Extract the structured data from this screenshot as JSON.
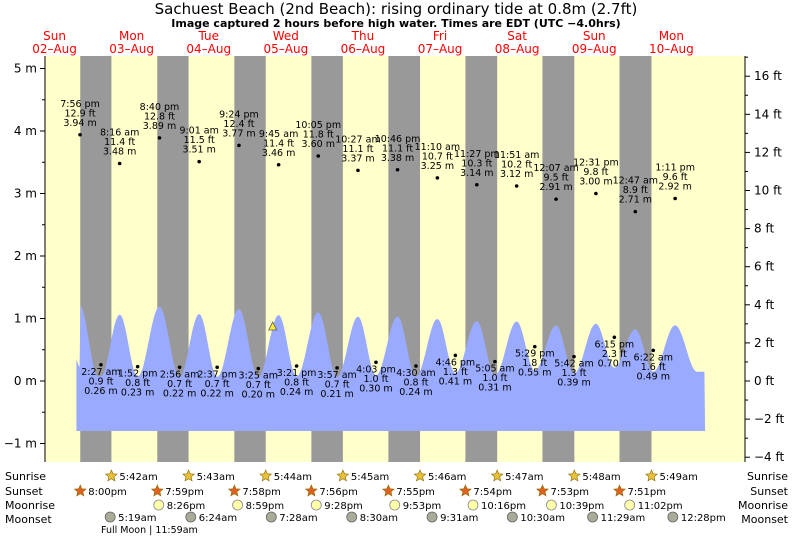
{
  "title": "Sachuest Beach (2nd Beach): rising  ordinary tide at 0.8m (2.7ft)",
  "subtitle": "Image captured 2 hours before high water. Times are EDT (UTC −4.0hrs)",
  "colors": {
    "day": "#ffffcc",
    "night": "#999999",
    "water": "#99aaff",
    "date": "#ff0000",
    "sunrise_star": "#e8c03a",
    "sunset_star": "#e06020",
    "moonrise": "#ffffaa",
    "moonset": "#aaaa99"
  },
  "days": [
    {
      "name": "Sun",
      "date": "02–Aug"
    },
    {
      "name": "Mon",
      "date": "03–Aug"
    },
    {
      "name": "Tue",
      "date": "04–Aug"
    },
    {
      "name": "Wed",
      "date": "05–Aug"
    },
    {
      "name": "Thu",
      "date": "06–Aug"
    },
    {
      "name": "Fri",
      "date": "07–Aug"
    },
    {
      "name": "Sat",
      "date": "08–Aug"
    },
    {
      "name": "Sun",
      "date": "09–Aug"
    },
    {
      "name": "Mon",
      "date": "10–Aug"
    }
  ],
  "row_labels": {
    "sunrise": "Sunrise",
    "sunset": "Sunset",
    "moonrise": "Moonrise",
    "moonset": "Moonset"
  },
  "sunrise": [
    "5:42am",
    "5:43am",
    "5:44am",
    "5:45am",
    "5:46am",
    "5:47am",
    "5:48am",
    "5:49am"
  ],
  "sunset": [
    "8:00pm",
    "7:59pm",
    "7:58pm",
    "7:56pm",
    "7:55pm",
    "7:54pm",
    "7:53pm",
    "7:51pm"
  ],
  "moonrise": [
    "8:26pm",
    "8:59pm",
    "9:28pm",
    "9:53pm",
    "10:16pm",
    "10:39pm",
    "11:02pm"
  ],
  "moonset": [
    "5:19am",
    "6:24am",
    "7:28am",
    "8:30am",
    "9:31am",
    "10:30am",
    "11:29am",
    "12:28pm"
  ],
  "moon_phase": "Full Moon | 11:59am",
  "chart_data": {
    "type": "area",
    "title": "Sachuest Beach (2nd Beach): rising  ordinary tide at 0.8m (2.7ft)",
    "subtitle": "Image captured 2 hours before high water. Times are EDT (UTC −4.0hrs)",
    "y_left_unit": "m",
    "y_left_ticks": [
      "−1 m",
      "0 m",
      "1 m",
      "2 m",
      "3 m",
      "4 m",
      "5 m"
    ],
    "y_left_range": [
      -1.3,
      5.2
    ],
    "y_right_unit": "ft",
    "y_right_ticks": [
      "−4 ft",
      "−2 ft",
      "0 ft",
      "2 ft",
      "4 ft",
      "6 ft",
      "8 ft",
      "10 ft",
      "12 ft",
      "14 ft",
      "16 ft"
    ],
    "x_range": [
      "02-Aug 00:00",
      "10-Aug 24:00"
    ],
    "current": {
      "time": "05-Aug 07:55",
      "height_m": 0.8
    },
    "highs": [
      {
        "day": 0,
        "time": "7:56 pm",
        "ft": "12.9 ft",
        "m": "3.94 m",
        "h": 3.94
      },
      {
        "day": 1,
        "time": "8:16 am",
        "ft": "11.4 ft",
        "m": "3.48 m",
        "h": 3.48
      },
      {
        "day": 1,
        "time": "8:40 pm",
        "ft": "12.8 ft",
        "m": "3.89 m",
        "h": 3.89
      },
      {
        "day": 2,
        "time": "9:01 am",
        "ft": "11.5 ft",
        "m": "3.51 m",
        "h": 3.51
      },
      {
        "day": 2,
        "time": "9:24 pm",
        "ft": "12.4 ft",
        "m": "3.77 m",
        "h": 3.77
      },
      {
        "day": 3,
        "time": "9:45 am",
        "ft": "11.4 ft",
        "m": "3.46 m",
        "h": 3.46
      },
      {
        "day": 3,
        "time": "10:05 pm",
        "ft": "11.8 ft",
        "m": "3.60 m",
        "h": 3.6
      },
      {
        "day": 4,
        "time": "10:27 am",
        "ft": "11.1 ft",
        "m": "3.37 m",
        "h": 3.37
      },
      {
        "day": 4,
        "time": "10:46 pm",
        "ft": "11.1 ft",
        "m": "3.38 m",
        "h": 3.38
      },
      {
        "day": 5,
        "time": "11:10 am",
        "ft": "10.7 ft",
        "m": "3.25 m",
        "h": 3.25
      },
      {
        "day": 5,
        "time": "11:27 pm",
        "ft": "10.3 ft",
        "m": "3.14 m",
        "h": 3.14
      },
      {
        "day": 6,
        "time": "11:51 am",
        "ft": "10.2 ft",
        "m": "3.12 m",
        "h": 3.12
      },
      {
        "day": 7,
        "time": "12:07 am",
        "ft": "9.5 ft",
        "m": "2.91 m",
        "h": 2.91
      },
      {
        "day": 7,
        "time": "12:31 pm",
        "ft": "9.8 ft",
        "m": "3.00 m",
        "h": 3.0
      },
      {
        "day": 8,
        "time": "12:47 am",
        "ft": "8.9 ft",
        "m": "2.71 m",
        "h": 2.71
      },
      {
        "day": 8,
        "time": "1:11 pm",
        "ft": "9.6 ft",
        "m": "2.92 m",
        "h": 2.92
      }
    ],
    "lows": [
      {
        "day": 1,
        "time": "2:27 am",
        "ft": "0.9 ft",
        "m": "0.26 m",
        "h": 0.26
      },
      {
        "day": 1,
        "time": "1:52 pm",
        "ft": "0.8 ft",
        "m": "0.23 m",
        "h": 0.23
      },
      {
        "day": 2,
        "time": "2:56 am",
        "ft": "0.7 ft",
        "m": "0.22 m",
        "h": 0.22
      },
      {
        "day": 2,
        "time": "2:37 pm",
        "ft": "0.7 ft",
        "m": "0.22 m",
        "h": 0.22
      },
      {
        "day": 3,
        "time": "3:25 am",
        "ft": "0.7 ft",
        "m": "0.20 m",
        "h": 0.2
      },
      {
        "day": 3,
        "time": "3:21 pm",
        "ft": "0.8 ft",
        "m": "0.24 m",
        "h": 0.24
      },
      {
        "day": 4,
        "time": "3:57 am",
        "ft": "0.7 ft",
        "m": "0.21 m",
        "h": 0.21
      },
      {
        "day": 4,
        "time": "4:03 pm",
        "ft": "1.0 ft",
        "m": "0.30 m",
        "h": 0.3
      },
      {
        "day": 5,
        "time": "4:30 am",
        "ft": "0.8 ft",
        "m": "0.24 m",
        "h": 0.24
      },
      {
        "day": 5,
        "time": "4:46 pm",
        "ft": "1.3 ft",
        "m": "0.41 m",
        "h": 0.41
      },
      {
        "day": 6,
        "time": "5:05 am",
        "ft": "1.0 ft",
        "m": "0.31 m",
        "h": 0.31
      },
      {
        "day": 6,
        "time": "5:29 pm",
        "ft": "1.8 ft",
        "m": "0.55 m",
        "h": 0.55
      },
      {
        "day": 7,
        "time": "5:42 am",
        "ft": "1.3 ft",
        "m": "0.39 m",
        "h": 0.39
      },
      {
        "day": 7,
        "time": "6:15 pm",
        "ft": "2.3 ft",
        "m": "0.70 m",
        "h": 0.7
      },
      {
        "day": 8,
        "time": "6:22 am",
        "ft": "1.6 ft",
        "m": "0.49 m",
        "h": 0.49
      }
    ]
  }
}
